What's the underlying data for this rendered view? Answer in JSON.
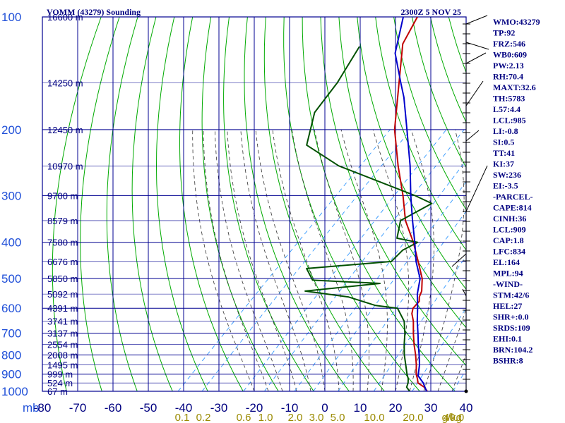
{
  "header": {
    "title": "VOMM (43279) Sounding",
    "datetime": "2300Z  5 NOV 25"
  },
  "colors": {
    "grid": "#000090",
    "dry_adiabat": "#00aa00",
    "moist_adiabat": "#333333",
    "mixing_ratio": "#3399ff",
    "temperature": "#c00000",
    "dewpoint": "#005000",
    "parcel": "#0000cc",
    "wind": "#000000"
  },
  "indices": [
    "WMO:43279",
    "TP:92",
    "FRZ:546",
    "WB0:609",
    "PW:2.13",
    "RH:70.4",
    "MAXT:32.6",
    "TH:5783",
    "L57:4.4",
    "LCL:985",
    "LI:-0.8",
    "SI:0.5",
    "TT:41",
    "KI:37",
    "SW:236",
    "EI:-3.5",
    "-PARCEL-",
    "CAPE:814",
    "CINH:36",
    "LCL:909",
    "CAP:1.8",
    "LFC:834",
    "EL:164",
    "MPL:94",
    "-WIND-",
    "STM:42/6",
    "HEL:27",
    "SHR+:0.0",
    "SRDS:109",
    "EHI:0.1",
    "BRN:104.2",
    "BSHR:8"
  ],
  "chart_data": {
    "type": "line",
    "chart_kind": "skew-T log-P sounding",
    "y_axis": {
      "label": "mb",
      "scale": "log",
      "range": [
        1000,
        100
      ],
      "ticks": [
        100,
        200,
        300,
        400,
        500,
        600,
        700,
        800,
        900,
        1000
      ]
    },
    "x_axis": {
      "label": "",
      "range": [
        -80,
        40
      ],
      "ticks": [
        -80,
        -70,
        -60,
        -50,
        -40,
        -30,
        -20,
        -10,
        0,
        10,
        20,
        30,
        40
      ]
    },
    "height_labels": [
      {
        "p": 100,
        "label": "16600 m"
      },
      {
        "p": 150,
        "label": "14250 m"
      },
      {
        "p": 200,
        "label": "12450 m"
      },
      {
        "p": 250,
        "label": "10970 m"
      },
      {
        "p": 300,
        "label": "9700 m"
      },
      {
        "p": 350,
        "label": "8579 m"
      },
      {
        "p": 400,
        "label": "7580 m"
      },
      {
        "p": 450,
        "label": "6676 m"
      },
      {
        "p": 500,
        "label": "5850 m"
      },
      {
        "p": 550,
        "label": "5092 m"
      },
      {
        "p": 600,
        "label": "4391 m"
      },
      {
        "p": 650,
        "label": "3741 m"
      },
      {
        "p": 700,
        "label": "3137 m"
      },
      {
        "p": 750,
        "label": "2554 m"
      },
      {
        "p": 800,
        "label": "2008 m"
      },
      {
        "p": 850,
        "label": "1495 m"
      },
      {
        "p": 900,
        "label": "999 m"
      },
      {
        "p": 950,
        "label": "524 m"
      },
      {
        "p": 1000,
        "label": "67 m"
      }
    ],
    "mixing_ratio_labels": [
      "0.1",
      "0.2",
      "0.6",
      "1.0",
      "2.0",
      "3.0",
      "5.0",
      "10.0",
      "20.0",
      "40.0"
    ],
    "mixing_ratio_unit": "g/kg",
    "series": [
      {
        "key": "temperature",
        "points": [
          [
            1000,
            29.0
          ],
          [
            975,
            27.0
          ],
          [
            950,
            24.0
          ],
          [
            925,
            22.6
          ],
          [
            900,
            21.0
          ],
          [
            850,
            18.4
          ],
          [
            800,
            15.4
          ],
          [
            750,
            12.0
          ],
          [
            700,
            8.6
          ],
          [
            650,
            5.2
          ],
          [
            620,
            2.6
          ],
          [
            600,
            1.4
          ],
          [
            575,
            1.2
          ],
          [
            560,
            0.0
          ],
          [
            540,
            -1.0
          ],
          [
            500,
            -4.4
          ],
          [
            450,
            -10.4
          ],
          [
            400,
            -17.2
          ],
          [
            350,
            -25.6
          ],
          [
            300,
            -33.4
          ],
          [
            250,
            -43.2
          ],
          [
            200,
            -54.5
          ],
          [
            150,
            -66.5
          ],
          [
            118,
            -76.5
          ],
          [
            100,
            -80.0
          ]
        ]
      },
      {
        "key": "dewpoint",
        "points": [
          [
            1000,
            24.0
          ],
          [
            975,
            22.0
          ],
          [
            950,
            21.2
          ],
          [
            925,
            20.0
          ],
          [
            900,
            18.4
          ],
          [
            850,
            15.4
          ],
          [
            800,
            12.2
          ],
          [
            750,
            9.2
          ],
          [
            700,
            6.2
          ],
          [
            650,
            2.6
          ],
          [
            600,
            -3.0
          ],
          [
            590,
            -10.0
          ],
          [
            560,
            -20.0
          ],
          [
            540,
            -34.0
          ],
          [
            515,
            -15.0
          ],
          [
            505,
            -35.0
          ],
          [
            470,
            -40.0
          ],
          [
            450,
            -18.0
          ],
          [
            420,
            -18.0
          ],
          [
            400,
            -16.0
          ],
          [
            390,
            -23.0
          ],
          [
            350,
            -27.0
          ],
          [
            315,
            -23.0
          ],
          [
            300,
            -30.0
          ],
          [
            250,
            -60.0
          ],
          [
            220,
            -75.0
          ],
          [
            180,
            -82.0
          ],
          [
            150,
            -84.0
          ],
          [
            120,
            -88.0
          ]
        ]
      },
      {
        "key": "parcel",
        "points": [
          [
            1000,
            28.8
          ],
          [
            950,
            25.5
          ],
          [
            909,
            22.0
          ],
          [
            850,
            19.3
          ],
          [
            800,
            16.4
          ],
          [
            750,
            13.2
          ],
          [
            700,
            9.9
          ],
          [
            650,
            6.3
          ],
          [
            600,
            2.7
          ],
          [
            550,
            -1.4
          ],
          [
            500,
            -5.0
          ],
          [
            450,
            -11.0
          ],
          [
            400,
            -16.8
          ],
          [
            350,
            -23.6
          ],
          [
            300,
            -31.2
          ],
          [
            250,
            -39.8
          ],
          [
            200,
            -51.0
          ],
          [
            164,
            -61.0
          ],
          [
            150,
            -66.0
          ],
          [
            125,
            -76.0
          ],
          [
            100,
            -84.0
          ]
        ]
      }
    ]
  }
}
